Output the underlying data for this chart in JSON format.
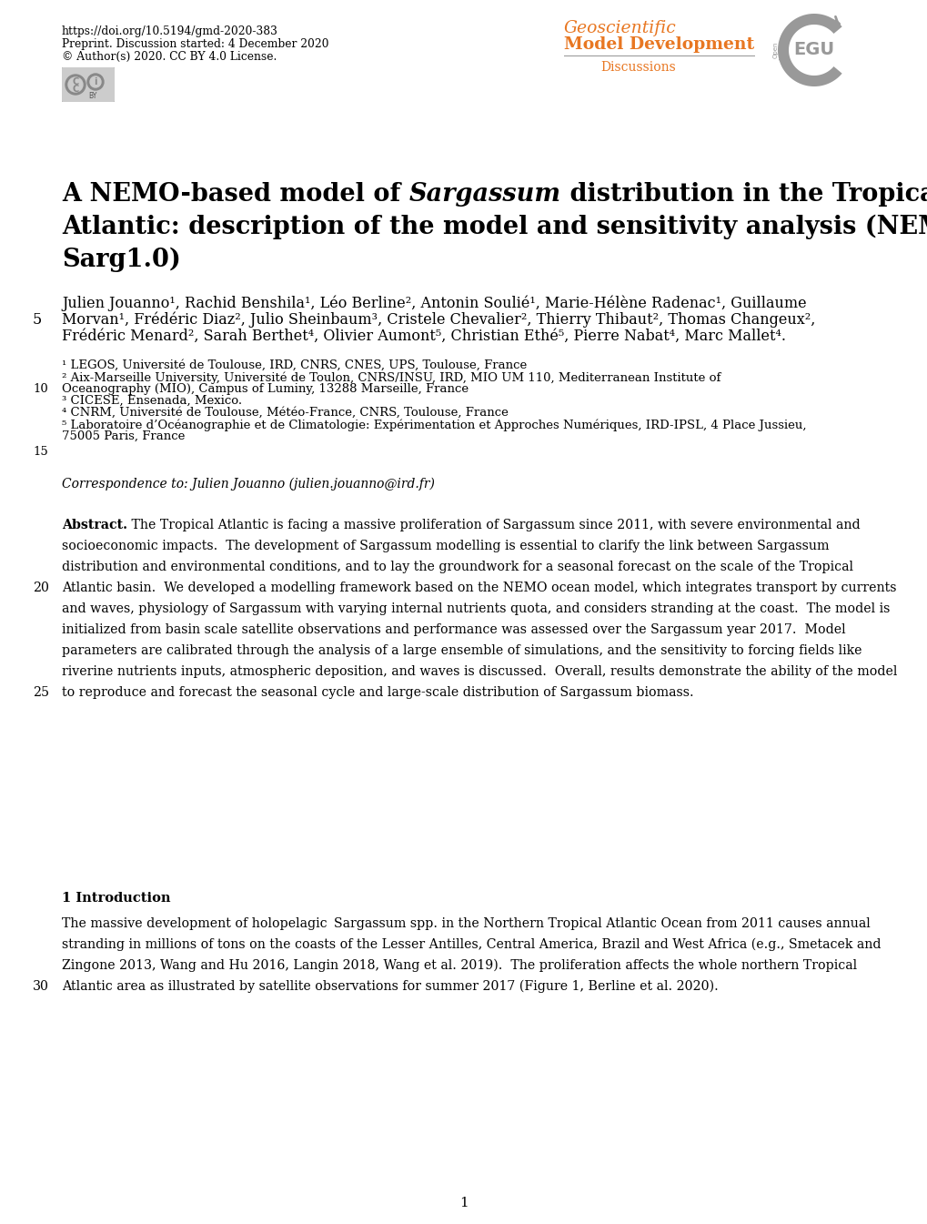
{
  "doi_text": "https://doi.org/10.5194/gmd-2020-383",
  "preprint_text": "Preprint. Discussion started: 4 December 2020",
  "license_text": "© Author(s) 2020. CC BY 4.0 License.",
  "journal_line1": "Geoscientific",
  "journal_line2": "Model Development",
  "journal_sub": "Discussions",
  "orange_color": "#E87722",
  "gray_color": "#999999",
  "title_pre": "A NEMO-based model of ",
  "title_italic": "Sargassum",
  "title_post": " distribution in the Tropical",
  "title_line2": "Atlantic: description of the model and sensitivity analysis (NEMO-",
  "title_line3": "Sarg1.0)",
  "auth1": "Julien Jouanno¹, Rachid Benshila¹, Léo Berline², Antonin Soulié¹, Marie-Hélène Radenac¹, Guillaume",
  "auth2": "Morvan¹, Frédéric Diaz², Julio Sheinbaum³, Cristele Chevalier², Thierry Thibaut², Thomas Changeux²,",
  "auth3": "Frédéric Menard², Sarah Berthet⁴, Olivier Aumont⁵, Christian Ethé⁵, Pierre Nabat⁴, Marc Mallet⁴.",
  "aff1": "¹ LEGOS, Université de Toulouse, IRD, CNRS, CNES, UPS, Toulouse, France",
  "aff2": "² Aix-Marseille University, Université de Toulon, CNRS/INSU, IRD, MIO UM 110, Mediterranean Institute of",
  "aff2b": "Oceanography (MIO), Campus of Luminy, 13288 Marseille, France",
  "aff3": "³ CICESE, Ensenada, Mexico.",
  "aff4": "⁴ CNRM, Université de Toulouse, Météo-France, CNRS, Toulouse, France",
  "aff5": "⁵ Laboratoire d’Océanographie et de Climatologie: Expérimentation et Approches Numériques, IRD-IPSL, 4 Place Jussieu,",
  "aff5b": "75005 Paris, France",
  "corr_italic": "Correspondence to",
  "corr_rest": ": Julien Jouanno (julien.jouanno@ird.fr)",
  "abs_bold": "Abstract.",
  "abs_l1": " The Tropical Atlantic is facing a massive proliferation of Sargassum since 2011, with severe environmental and",
  "abs_l2": "socioeconomic impacts.  The development of Sargassum modelling is essential to clarify the link between Sargassum",
  "abs_l3": "distribution and environmental conditions, and to lay the groundwork for a seasonal forecast on the scale of the Tropical",
  "abs_l4": "Atlantic basin.  We developed a modelling framework based on the NEMO ocean model, which integrates transport by currents",
  "abs_l5": "and waves, physiology of Sargassum with varying internal nutrients quota, and considers stranding at the coast.  The model is",
  "abs_l6": "initialized from basin scale satellite observations and performance was assessed over the Sargassum year 2017.  Model",
  "abs_l7": "parameters are calibrated through the analysis of a large ensemble of simulations, and the sensitivity to forcing fields like",
  "abs_l8": "riverine nutrients inputs, atmospheric deposition, and waves is discussed.  Overall, results demonstrate the ability of the model",
  "abs_l9": "to reproduce and forecast the seasonal cycle and large-scale distribution of Sargassum biomass.",
  "sec1": "1 Introduction",
  "intro_l1": "The massive development of holopelagic  Sargassum spp. in the Northern Tropical Atlantic Ocean from 2011 causes annual",
  "intro_l2": "stranding in millions of tons on the coasts of the Lesser Antilles, Central America, Brazil and West Africa (e.g., Smetacek and",
  "intro_l3": "Zingone 2013, Wang and Hu 2016, Langin 2018, Wang et al. 2019).  The proliferation affects the whole northern Tropical",
  "intro_l4": "Atlantic area as illustrated by satellite observations for summer 2017 (Figure 1, Berline et al. 2020).",
  "page_num": "1",
  "bg": "#FFFFFF",
  "fg": "#000000",
  "lnum5": "5",
  "lnum10": "10",
  "lnum15": "15",
  "lnum20": "20",
  "lnum25": "25",
  "lnum30": "30"
}
